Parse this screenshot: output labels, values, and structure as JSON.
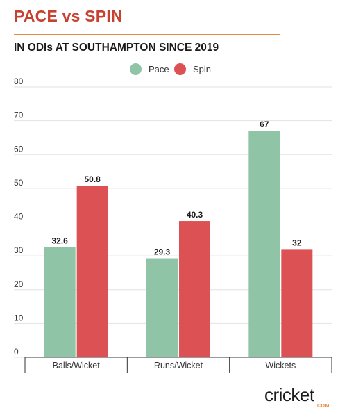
{
  "header": {
    "title": "PACE vs SPIN",
    "subtitle": "IN ODIs AT SOUTHAMPTON SINCE 2019"
  },
  "logo": {
    "text_main": "cricket",
    "text_sub": "COM"
  },
  "colors": {
    "pace": "#8fc4a6",
    "spin": "#dc5154",
    "title": "#c8402f",
    "rule": "#e8893f"
  },
  "chart_data": {
    "type": "bar",
    "categories": [
      "Balls/Wicket",
      "Runs/Wicket",
      "Wickets"
    ],
    "series": [
      {
        "name": "Pace",
        "values": [
          32.6,
          29.3,
          67
        ],
        "labels": [
          "32.6",
          "29.3",
          "67"
        ]
      },
      {
        "name": "Spin",
        "values": [
          50.8,
          40.3,
          32
        ],
        "labels": [
          "50.8",
          "40.3",
          "32"
        ]
      }
    ],
    "ylim": [
      0,
      80
    ],
    "yticks": [
      0,
      10,
      20,
      30,
      40,
      50,
      60,
      70,
      80
    ],
    "grid": true,
    "legend": "top-center",
    "title": "PACE vs SPIN",
    "subtitle": "IN ODIs AT SOUTHAMPTON SINCE 2019",
    "xlabel": "",
    "ylabel": ""
  }
}
